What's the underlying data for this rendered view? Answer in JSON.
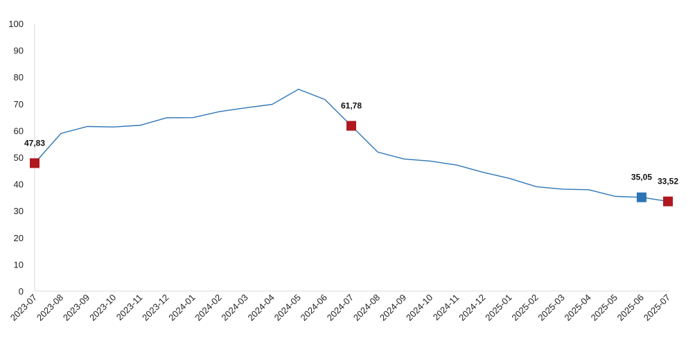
{
  "chart_data": {
    "type": "line",
    "title": "",
    "xlabel": "",
    "ylabel": "",
    "ylim": [
      0,
      100
    ],
    "yticks": [
      "0",
      "10",
      "20",
      "30",
      "40",
      "50",
      "60",
      "70",
      "80",
      "90",
      "100"
    ],
    "grid": false,
    "categories": [
      "2023-07",
      "2023-08",
      "2023-09",
      "2023-10",
      "2023-11",
      "2023-12",
      "2024-01",
      "2024-02",
      "2024-03",
      "2024-04",
      "2024-05",
      "2024-06",
      "2024-07",
      "2024-08",
      "2024-09",
      "2024-10",
      "2024-11",
      "2024-12",
      "2025-01",
      "2025-02",
      "2025-03",
      "2025-04",
      "2025-05",
      "2025-06",
      "2025-07"
    ],
    "series": [
      {
        "values": [
          47.83,
          58.94,
          61.53,
          61.36,
          61.98,
          64.77,
          64.86,
          67.07,
          68.5,
          69.8,
          75.45,
          71.6,
          61.78,
          51.97,
          49.38,
          48.58,
          47.09,
          44.38,
          42.12,
          39.05,
          38.1,
          37.86,
          35.41,
          35.05,
          33.52
        ],
        "color": "#2e75b6"
      }
    ],
    "highlights": [
      {
        "index": 0,
        "label": "47,83",
        "color": "#b0171f"
      },
      {
        "index": 12,
        "label": "61,78",
        "color": "#b0171f"
      },
      {
        "index": 23,
        "label": "35,05",
        "color": "#2e75b6"
      },
      {
        "index": 24,
        "label": "33,52",
        "color": "#b0171f"
      }
    ]
  }
}
